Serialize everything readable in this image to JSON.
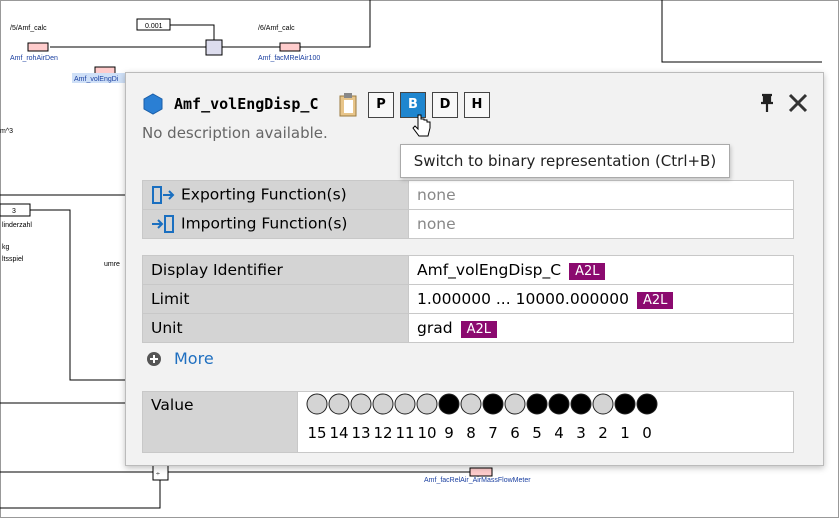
{
  "diagram": {
    "labels": [
      "/5/Amf_calc",
      "0.001",
      "/6/Amf_calc",
      "Amf_rohAirDen",
      "Amf_facMRelAir100",
      "Amf_volEngDi",
      "m^3",
      "3",
      "linderzahl",
      "kg",
      "ltsspiel",
      "umre",
      "Amf_facRelAir_AirMassFlowMeter"
    ]
  },
  "popup": {
    "title": "Amf_volEngDisp_C",
    "buttons": [
      "P",
      "B",
      "D",
      "H"
    ],
    "description": "No description available.",
    "tooltip": "Switch to binary representation (Ctrl+B)",
    "functions": [
      {
        "label": "Exporting Function(s)",
        "value": "none"
      },
      {
        "label": "Importing Function(s)",
        "value": "none"
      }
    ],
    "properties": [
      {
        "label": "Display Identifier",
        "value": "Amf_volEngDisp_C",
        "tag": "A2L"
      },
      {
        "label": "Limit",
        "value": "1.000000 ... 10000.000000",
        "tag": "A2L"
      },
      {
        "label": "Unit",
        "value": "grad",
        "tag": "A2L"
      }
    ],
    "more": "More",
    "value_label": "Value",
    "bits": [
      {
        "index": 15,
        "set": false
      },
      {
        "index": 14,
        "set": false
      },
      {
        "index": 13,
        "set": false
      },
      {
        "index": 12,
        "set": false
      },
      {
        "index": 11,
        "set": false
      },
      {
        "index": 10,
        "set": false
      },
      {
        "index": 9,
        "set": true
      },
      {
        "index": 8,
        "set": false
      },
      {
        "index": 7,
        "set": true
      },
      {
        "index": 6,
        "set": false
      },
      {
        "index": 5,
        "set": true
      },
      {
        "index": 4,
        "set": true
      },
      {
        "index": 3,
        "set": true
      },
      {
        "index": 2,
        "set": false
      },
      {
        "index": 1,
        "set": true
      },
      {
        "index": 0,
        "set": true
      }
    ]
  }
}
